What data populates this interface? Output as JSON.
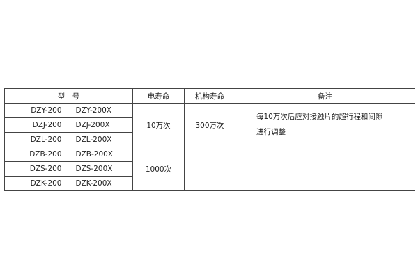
{
  "table": {
    "headers": [
      "型　号",
      "电寿命",
      "机构寿命",
      "备注"
    ],
    "models": [
      [
        "DZY-200",
        "DZY-200X"
      ],
      [
        "DZJ-200",
        "DZJ-200X"
      ],
      [
        "DZL-200",
        "DZL-200X"
      ],
      [
        "DZB-200",
        "DZB-200X"
      ],
      [
        "DZS-200",
        "DZS-200X"
      ],
      [
        "DZK-200",
        "DZK-200X"
      ]
    ],
    "electrical_life": [
      "10万次",
      "1000次"
    ],
    "mechanical_life": [
      "300万次",
      ""
    ],
    "remarks": [
      "每10万次后应对接触片的超行程和间隙",
      "进行调整"
    ]
  }
}
